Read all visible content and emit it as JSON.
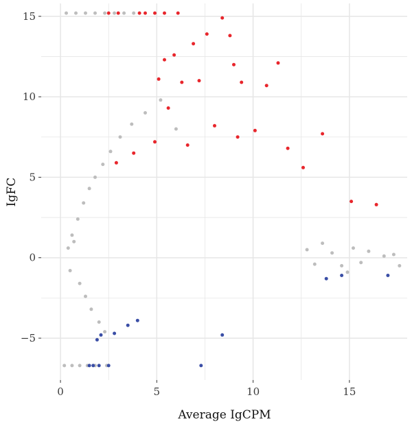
{
  "chart_data": {
    "type": "scatter",
    "title": "",
    "xlabel": "Average IgCPM",
    "ylabel": "IgFC",
    "xlim": [
      -1,
      18
    ],
    "ylim": [
      -7.6,
      15.8
    ],
    "xticks": [
      0,
      5,
      10,
      15
    ],
    "yticks": [
      -5,
      0,
      5,
      10,
      15
    ],
    "xtick_labels": [
      "0",
      "5",
      "10",
      "15"
    ],
    "ytick_labels": [
      "−5",
      "0",
      "5",
      "10",
      "15"
    ],
    "grid": true,
    "legend": "none",
    "colors": {
      "background": "#ffffff",
      "grid": "#e6e6e6",
      "not_significant": "#bdbdbd",
      "up_regulated": "#e8262c",
      "down_regulated": "#3a4ea6"
    },
    "series": [
      {
        "color": "#bdbdbd",
        "description_points": "bulk cloud around lgFC 0 across lgCPM 0.3-13, fanning upward at low lgCPM; plus saturated rows at lgFC 15.2 and -6.7",
        "points": [
          [
            0.3,
            15.2
          ],
          [
            0.8,
            15.2
          ],
          [
            1.3,
            15.2
          ],
          [
            1.8,
            15.2
          ],
          [
            2.3,
            15.2
          ],
          [
            2.8,
            15.2
          ],
          [
            3.3,
            15.2
          ],
          [
            3.8,
            15.2
          ],
          [
            0.2,
            -6.7
          ],
          [
            0.6,
            -6.7
          ],
          [
            1.0,
            -6.7
          ],
          [
            1.4,
            -6.7
          ],
          [
            1.8,
            -6.7
          ],
          [
            2.4,
            -6.7
          ],
          [
            0.6,
            1.4
          ],
          [
            0.9,
            2.4
          ],
          [
            1.2,
            3.4
          ],
          [
            1.5,
            4.3
          ],
          [
            1.8,
            5.0
          ],
          [
            2.2,
            5.8
          ],
          [
            2.6,
            6.6
          ],
          [
            3.1,
            7.5
          ],
          [
            3.7,
            8.3
          ],
          [
            4.4,
            9.0
          ],
          [
            5.2,
            9.8
          ],
          [
            6.0,
            8.0
          ],
          [
            0.4,
            0.6
          ],
          [
            0.5,
            -0.8
          ],
          [
            0.7,
            1.0
          ],
          [
            1.0,
            -1.6
          ],
          [
            1.3,
            -2.4
          ],
          [
            1.6,
            -3.2
          ],
          [
            2.0,
            -4.0
          ],
          [
            2.3,
            -4.6
          ],
          [
            12.8,
            0.5
          ],
          [
            13.2,
            -0.4
          ],
          [
            13.6,
            0.9
          ],
          [
            14.1,
            0.3
          ],
          [
            14.6,
            -0.5
          ],
          [
            15.2,
            0.6
          ],
          [
            16.0,
            0.4
          ],
          [
            16.8,
            0.1
          ],
          [
            17.3,
            0.2
          ],
          [
            17.6,
            -0.5
          ],
          [
            14.9,
            -0.9
          ],
          [
            15.6,
            -0.3
          ]
        ]
      },
      {
        "color": "#e8262c",
        "description_points": "up-regulated genes, lgFC > 1",
        "points": [
          [
            2.5,
            15.2
          ],
          [
            3.0,
            15.2
          ],
          [
            4.1,
            15.2
          ],
          [
            4.4,
            15.2
          ],
          [
            4.9,
            15.2
          ],
          [
            5.4,
            15.2
          ],
          [
            6.1,
            15.2
          ],
          [
            8.4,
            14.9
          ],
          [
            7.6,
            13.9
          ],
          [
            8.8,
            13.8
          ],
          [
            6.9,
            13.3
          ],
          [
            5.9,
            12.6
          ],
          [
            11.3,
            12.1
          ],
          [
            9.0,
            12.0
          ],
          [
            5.4,
            12.3
          ],
          [
            7.2,
            11.0
          ],
          [
            6.3,
            10.9
          ],
          [
            9.4,
            10.9
          ],
          [
            10.7,
            10.7
          ],
          [
            5.1,
            11.1
          ],
          [
            13.6,
            7.7
          ],
          [
            16.4,
            3.3
          ],
          [
            15.1,
            3.5
          ],
          [
            5.6,
            9.3
          ],
          [
            8.0,
            8.2
          ],
          [
            10.1,
            7.9
          ],
          [
            11.8,
            6.8
          ],
          [
            12.6,
            5.6
          ],
          [
            4.9,
            7.2
          ],
          [
            6.6,
            7.0
          ],
          [
            9.2,
            7.5
          ],
          [
            3.8,
            6.5
          ],
          [
            2.9,
            5.9
          ]
        ]
      },
      {
        "color": "#3a4ea6",
        "description_points": "down-regulated genes, lgFC < -1",
        "points": [
          [
            1.5,
            -6.7
          ],
          [
            1.7,
            -6.7
          ],
          [
            2.0,
            -6.7
          ],
          [
            2.5,
            -6.7
          ],
          [
            7.3,
            -6.7
          ],
          [
            1.9,
            -5.1
          ],
          [
            2.1,
            -4.8
          ],
          [
            2.8,
            -4.7
          ],
          [
            8.4,
            -4.8
          ],
          [
            17.0,
            -1.1
          ],
          [
            13.8,
            -1.3
          ],
          [
            14.6,
            -1.1
          ],
          [
            3.5,
            -4.2
          ],
          [
            4.0,
            -3.9
          ]
        ]
      }
    ]
  }
}
